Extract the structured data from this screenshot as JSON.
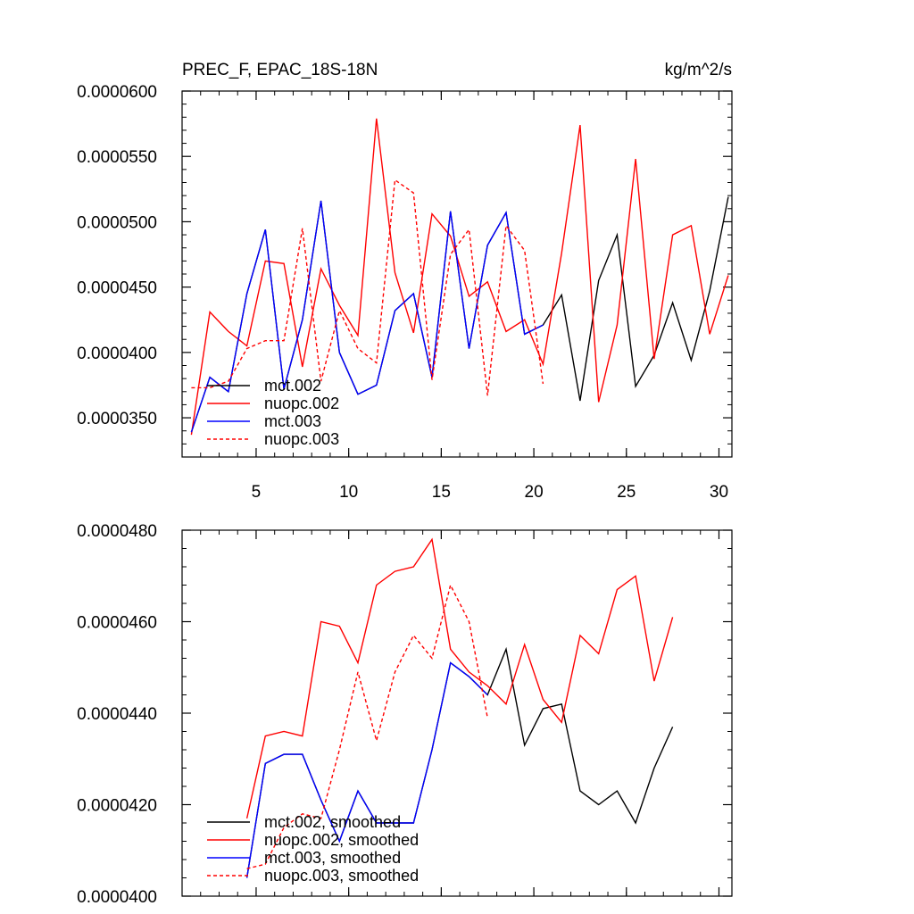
{
  "chart_data": [
    {
      "type": "line",
      "title": "PREC_F, EPAC_18S-18N",
      "units": "kg/m^2/s",
      "xlabel": "",
      "ylabel": "",
      "xlim": [
        1,
        30.7
      ],
      "ylim": [
        3.2e-05,
        6e-05
      ],
      "xticks": [
        5,
        10,
        15,
        20,
        25,
        30
      ],
      "xtick_labels": [
        "5",
        "10",
        "15",
        "20",
        "25",
        "30"
      ],
      "yticks": [
        3.5e-05,
        4e-05,
        4.5e-05,
        5e-05,
        5.5e-05,
        6e-05
      ],
      "ytick_labels": [
        "0.0000350",
        "0.0000400",
        "0.0000450",
        "0.0000500",
        "0.0000550",
        "0.0000600"
      ],
      "grid": false,
      "legend_position": "bottom-left",
      "series": [
        {
          "name": "mct.002",
          "color": "#000000",
          "dash": "solid",
          "x": [
            1.5,
            2.5,
            3.5,
            4.5,
            5.5,
            6.5,
            7.5,
            8.5,
            9.5,
            10.5,
            11.5,
            12.5,
            13.5,
            14.5,
            15.5,
            16.5,
            17.5,
            18.5,
            19.5,
            20.5,
            21.5,
            22.5,
            23.5,
            24.5,
            25.5,
            26.5,
            27.5,
            28.5,
            29.5,
            30.5
          ],
          "values": [
            3.39e-05,
            3.81e-05,
            3.7e-05,
            4.45e-05,
            4.94e-05,
            3.72e-05,
            4.25e-05,
            5.16e-05,
            4e-05,
            3.68e-05,
            3.75e-05,
            4.32e-05,
            4.45e-05,
            3.81e-05,
            5.08e-05,
            4.03e-05,
            4.82e-05,
            5.07e-05,
            4.14e-05,
            4.21e-05,
            4.44e-05,
            3.63e-05,
            4.55e-05,
            4.9e-05,
            3.74e-05,
            3.98e-05,
            4.38e-05,
            3.94e-05,
            4.47e-05,
            5.19e-05
          ]
        },
        {
          "name": "nuopc.002",
          "color": "#ff0000",
          "dash": "solid",
          "x": [
            1.5,
            2.5,
            3.5,
            4.5,
            5.5,
            6.5,
            7.5,
            8.5,
            9.5,
            10.5,
            11.5,
            12.5,
            13.5,
            14.5,
            15.5,
            16.5,
            17.5,
            18.5,
            19.5,
            20.5,
            21.5,
            22.5,
            23.5,
            24.5,
            25.5,
            26.5,
            27.5,
            28.5,
            29.5,
            30.5
          ],
          "values": [
            3.37e-05,
            4.31e-05,
            4.16e-05,
            4.05e-05,
            4.7e-05,
            4.68e-05,
            3.89e-05,
            4.64e-05,
            4.36e-05,
            4.13e-05,
            5.79e-05,
            4.61e-05,
            4.15e-05,
            5.06e-05,
            4.89e-05,
            4.43e-05,
            4.54e-05,
            4.16e-05,
            4.25e-05,
            3.91e-05,
            4.76e-05,
            5.74e-05,
            3.62e-05,
            4.21e-05,
            5.48e-05,
            3.95e-05,
            4.9e-05,
            4.97e-05,
            4.14e-05,
            4.59e-05
          ]
        },
        {
          "name": "mct.003",
          "color": "#0000ff",
          "dash": "solid",
          "x": [
            1.5,
            2.5,
            3.5,
            4.5,
            5.5,
            6.5,
            7.5,
            8.5,
            9.5,
            10.5,
            11.5,
            12.5,
            13.5,
            14.5,
            15.5,
            16.5,
            17.5,
            18.5,
            19.5,
            20.5
          ],
          "values": [
            3.39e-05,
            3.81e-05,
            3.7e-05,
            4.45e-05,
            4.94e-05,
            3.72e-05,
            4.25e-05,
            5.16e-05,
            4e-05,
            3.68e-05,
            3.75e-05,
            4.32e-05,
            4.45e-05,
            3.81e-05,
            5.08e-05,
            4.03e-05,
            4.82e-05,
            5.07e-05,
            4.14e-05,
            4.21e-05
          ]
        },
        {
          "name": "nuopc.003",
          "color": "#ff0000",
          "dash": "dashed",
          "x": [
            1.5,
            2.5,
            3.5,
            4.5,
            5.5,
            6.5,
            7.5,
            8.5,
            9.5,
            10.5,
            11.5,
            12.5,
            13.5,
            14.5,
            15.5,
            16.5,
            17.5,
            18.5,
            19.5,
            20.5
          ],
          "values": [
            3.73e-05,
            3.73e-05,
            3.78e-05,
            4.03e-05,
            4.09e-05,
            4.09e-05,
            4.95e-05,
            3.78e-05,
            4.32e-05,
            4.03e-05,
            3.92e-05,
            5.32e-05,
            5.22e-05,
            3.79e-05,
            4.75e-05,
            4.94e-05,
            3.67e-05,
            4.97e-05,
            4.78e-05,
            3.76e-05
          ]
        }
      ]
    },
    {
      "type": "line",
      "title": "",
      "xlabel": "",
      "ylabel": "",
      "xlim": [
        1,
        30.7
      ],
      "ylim": [
        4e-05,
        4.8e-05
      ],
      "xticks": [
        5,
        10,
        15,
        20,
        25,
        30
      ],
      "xtick_labels": [],
      "yticks": [
        4e-05,
        4.2e-05,
        4.4e-05,
        4.6e-05,
        4.8e-05
      ],
      "ytick_labels": [
        "0.0000400",
        "0.0000420",
        "0.0000440",
        "0.0000460",
        "0.0000480"
      ],
      "grid": false,
      "legend_position": "bottom-left",
      "series": [
        {
          "name": "mct.002, smoothed",
          "color": "#000000",
          "dash": "solid",
          "x": [
            4.5,
            5.5,
            6.5,
            7.5,
            8.5,
            9.5,
            10.5,
            11.5,
            12.5,
            13.5,
            14.5,
            15.5,
            16.5,
            17.5,
            18.5,
            19.5,
            20.5,
            21.5,
            22.5,
            23.5,
            24.5,
            25.5,
            26.5,
            27.5
          ],
          "values": [
            4.04e-05,
            4.29e-05,
            4.31e-05,
            4.31e-05,
            4.21e-05,
            4.12e-05,
            4.23e-05,
            4.16e-05,
            4.16e-05,
            4.16e-05,
            4.32e-05,
            4.51e-05,
            4.48e-05,
            4.44e-05,
            4.54e-05,
            4.33e-05,
            4.41e-05,
            4.42e-05,
            4.23e-05,
            4.2e-05,
            4.23e-05,
            4.16e-05,
            4.28e-05,
            4.37e-05
          ]
        },
        {
          "name": "nuopc.002, smoothed",
          "color": "#ff0000",
          "dash": "solid",
          "x": [
            4.5,
            5.5,
            6.5,
            7.5,
            8.5,
            9.5,
            10.5,
            11.5,
            12.5,
            13.5,
            14.5,
            15.5,
            16.5,
            17.5,
            18.5,
            19.5,
            20.5,
            21.5,
            22.5,
            23.5,
            24.5,
            25.5,
            26.5,
            27.5
          ],
          "values": [
            4.17e-05,
            4.35e-05,
            4.36e-05,
            4.35e-05,
            4.6e-05,
            4.59e-05,
            4.51e-05,
            4.68e-05,
            4.71e-05,
            4.72e-05,
            4.78e-05,
            4.54e-05,
            4.49e-05,
            4.46e-05,
            4.42e-05,
            4.55e-05,
            4.43e-05,
            4.38e-05,
            4.57e-05,
            4.53e-05,
            4.67e-05,
            4.7e-05,
            4.47e-05,
            4.61e-05
          ]
        },
        {
          "name": "mct.003, smoothed",
          "color": "#0000ff",
          "dash": "solid",
          "x": [
            4.5,
            5.5,
            6.5,
            7.5,
            8.5,
            9.5,
            10.5,
            11.5,
            12.5,
            13.5,
            14.5,
            15.5,
            16.5,
            17.5
          ],
          "values": [
            4.04e-05,
            4.29e-05,
            4.31e-05,
            4.31e-05,
            4.21e-05,
            4.12e-05,
            4.23e-05,
            4.16e-05,
            4.16e-05,
            4.16e-05,
            4.32e-05,
            4.51e-05,
            4.48e-05,
            4.44e-05
          ]
        },
        {
          "name": "nuopc.003, smoothed",
          "color": "#ff0000",
          "dash": "dashed",
          "x": [
            4.5,
            5.5,
            6.5,
            7.5,
            8.5,
            9.5,
            10.5,
            11.5,
            12.5,
            13.5,
            14.5,
            15.5,
            16.5,
            17.5
          ],
          "values": [
            4.06e-05,
            4.07e-05,
            4.15e-05,
            4.18e-05,
            4.17e-05,
            4.32e-05,
            4.49e-05,
            4.34e-05,
            4.49e-05,
            4.57e-05,
            4.52e-05,
            4.68e-05,
            4.6e-05,
            4.39e-05
          ]
        }
      ]
    }
  ]
}
